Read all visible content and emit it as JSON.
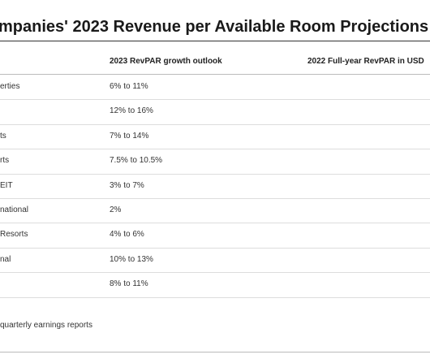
{
  "header": {
    "title": "mpanies' 2023 Revenue per Available Room Projections"
  },
  "table": {
    "columns": [
      "2023 RevPAR growth outlook",
      "2022 Full-year RevPAR in USD"
    ],
    "rows": [
      {
        "name": "erties",
        "outlook": "6% to 11%"
      },
      {
        "outlook": "12% to 16%"
      },
      {
        "name": "ts",
        "outlook": "7% to 14%"
      },
      {
        "name": "rts",
        "outlook": "7.5% to 10.5%"
      },
      {
        "name": "EIT",
        "outlook": "3% to 7%"
      },
      {
        "name": "national",
        "outlook": "2%"
      },
      {
        "name": "Resorts",
        "outlook": "4% to 6%"
      },
      {
        "name": "nal",
        "outlook": "10% to 13%"
      },
      {
        "outlook": "8% to 11%"
      }
    ]
  },
  "footer": {
    "source": "quarterly earnings reports"
  }
}
